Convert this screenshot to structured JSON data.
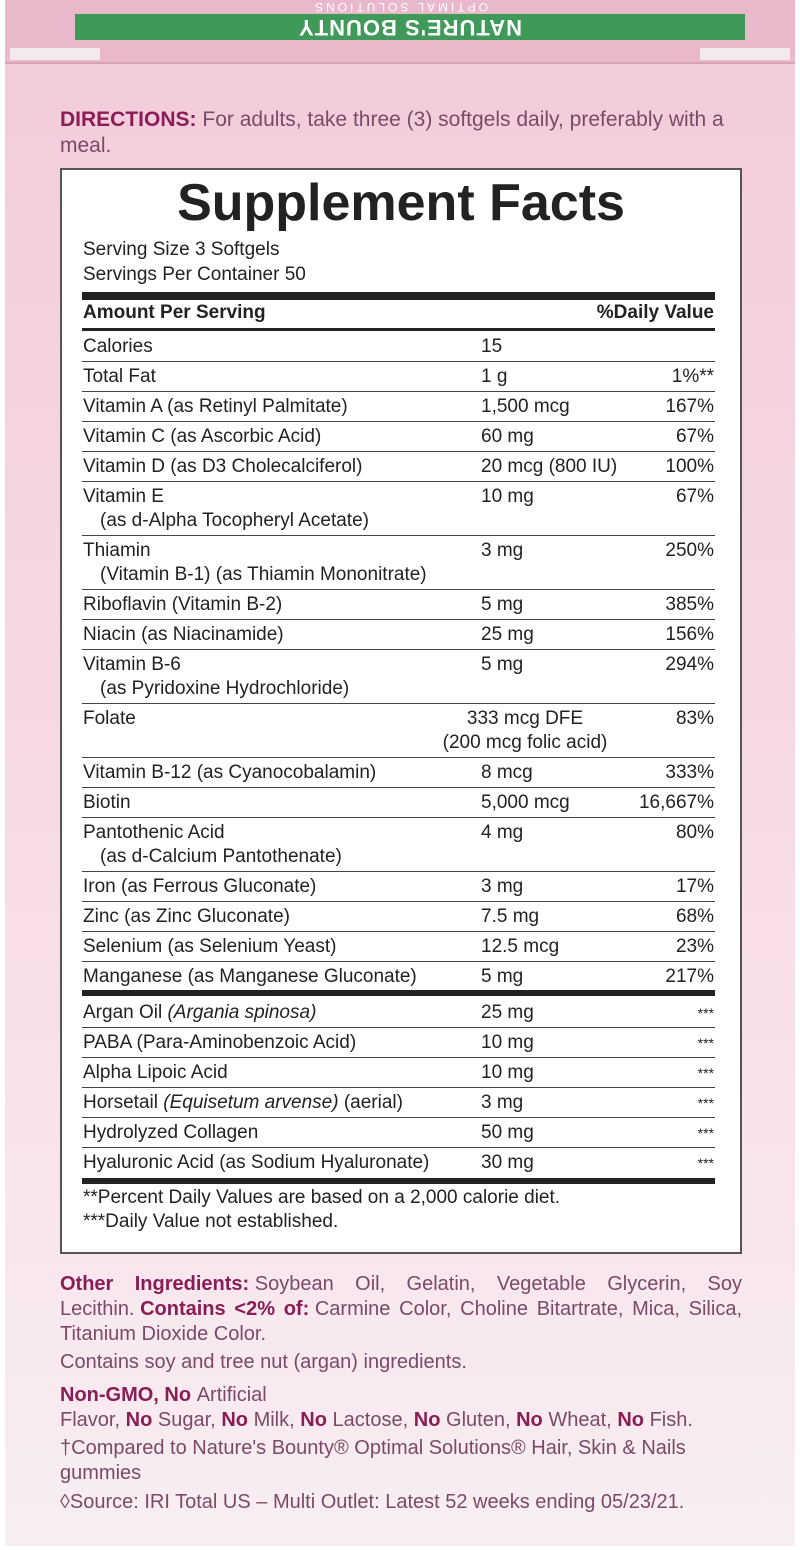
{
  "banner": {
    "brand": "NATURE'S BOUNTY",
    "line": "OPTIMAL SOLUTIONS"
  },
  "directions": {
    "label": "DIRECTIONS:",
    "text": "For adults, take three (3) softgels daily, preferably with a meal."
  },
  "facts": {
    "title": "Supplement Facts",
    "serving_size": "Serving Size 3 Softgels",
    "servings_per_container": "Servings Per Container 50",
    "header_amount": "Amount Per Serving",
    "header_dv": "%Daily Value",
    "rows": [
      {
        "name": "Calories",
        "amount": "15"
      },
      {
        "name": "Total Fat",
        "amount": "1 g",
        "dv": "1%**"
      },
      {
        "name": "Vitamin A (as Retinyl Palmitate)",
        "amount": "1,500 mcg",
        "dv": "167%"
      },
      {
        "name": "Vitamin C (as Ascorbic Acid)",
        "amount": "60 mg",
        "dv": "67%"
      },
      {
        "name": "Vitamin D (as D3 Cholecalciferol)",
        "amount": "20 mcg (800 IU)",
        "dv": "100%"
      },
      {
        "name": "Vitamin E",
        "sub": "(as d-Alpha Tocopheryl Acetate)",
        "amount": "10 mg",
        "dv": "67%"
      },
      {
        "name": "Thiamin",
        "sub": "(Vitamin B-1) (as Thiamin Mononitrate)",
        "amount": "3 mg",
        "dv": "250%"
      },
      {
        "name": "Riboflavin (Vitamin B-2)",
        "amount": "5 mg",
        "dv": "385%"
      },
      {
        "name": "Niacin (as Niacinamide)",
        "amount": "25 mg",
        "dv": "156%"
      },
      {
        "name": "Vitamin B-6",
        "sub": "(as Pyridoxine Hydrochloride)",
        "amount": "5 mg",
        "dv": "294%"
      },
      {
        "name": "Folate",
        "amount": "333 mcg DFE",
        "amount_sub": "(200 mcg folic acid)",
        "dv": "83%"
      },
      {
        "name": "Vitamin B-12 (as Cyanocobalamin)",
        "amount": "8 mcg",
        "dv": "333%"
      },
      {
        "name": "Biotin",
        "amount": "5,000 mcg",
        "dv": "16,667%"
      },
      {
        "name": "Pantothenic Acid",
        "sub": "(as d-Calcium Pantothenate)",
        "amount": "4 mg",
        "dv": "80%"
      },
      {
        "name": "Iron (as Ferrous Gluconate)",
        "amount": "3 mg",
        "dv": "17%"
      },
      {
        "name": "Zinc (as Zinc Gluconate)",
        "amount": "7.5 mg",
        "dv": "68%"
      },
      {
        "name": "Selenium (as Selenium Yeast)",
        "amount": "12.5 mcg",
        "dv": "23%"
      },
      {
        "name": "Manganese (as Manganese Gluconate)",
        "amount": "5 mg",
        "dv": "217%"
      }
    ],
    "rows2": [
      {
        "name": "Argan Oil",
        "latin": "(Argania spinosa)",
        "amount": "25 mg",
        "dv": "***"
      },
      {
        "name": "PABA (Para-Aminobenzoic Acid)",
        "amount": "10 mg",
        "dv": "***"
      },
      {
        "name": "Alpha Lipoic Acid",
        "amount": "10 mg",
        "dv": "***"
      },
      {
        "name": "Horsetail",
        "latin": "(Equisetum arvense)",
        "part": "(aerial)",
        "amount": "3 mg",
        "dv": "***"
      },
      {
        "name": "Hydrolyzed Collagen",
        "amount": "50 mg",
        "dv": "***"
      },
      {
        "name": "Hyaluronic Acid (as Sodium Hyaluronate)",
        "amount": "30 mg",
        "dv": "***"
      }
    ],
    "footnotes": [
      "**Percent Daily Values are based on a 2,000 calorie diet.",
      "***Daily Value not established."
    ]
  },
  "other_ingredients": [
    {
      "text": "Other Ingredients:",
      "bold": true
    },
    {
      "text": "Soybean Oil, Gelatin, Vegetable Glycerin, Soy Lecithin.",
      "bold": false
    },
    {
      "text": "Contains <2% of:",
      "bold": true
    },
    {
      "text": "Carmine Color, Choline Bitartrate, Mica, Silica, Titanium Dioxide Color.",
      "bold": false
    }
  ],
  "allergen": "Contains soy and tree nut (argan) ingredients.",
  "free_from": [
    {
      "text": "Non-GMO, No",
      "bold": true
    },
    {
      "text": "Artificial Flavor,",
      "bold": false
    },
    {
      "text": "No",
      "bold": true
    },
    {
      "text": "Sugar,",
      "bold": false
    },
    {
      "text": "No",
      "bold": true
    },
    {
      "text": "Milk,",
      "bold": false
    },
    {
      "text": "No",
      "bold": true
    },
    {
      "text": "Lactose,",
      "bold": false
    },
    {
      "text": "No",
      "bold": true
    },
    {
      "text": "Gluten,",
      "bold": false
    },
    {
      "text": "No",
      "bold": true
    },
    {
      "text": "Wheat,",
      "bold": false
    },
    {
      "text": "No",
      "bold": true
    },
    {
      "text": "Fish.",
      "bold": false
    }
  ],
  "compared": "†Compared to Nature's Bounty® Optimal Solutions® Hair, Skin & Nails gummies",
  "source": "◊Source: IRI Total US – Multi Outlet: Latest 52 weeks ending 05/23/21."
}
